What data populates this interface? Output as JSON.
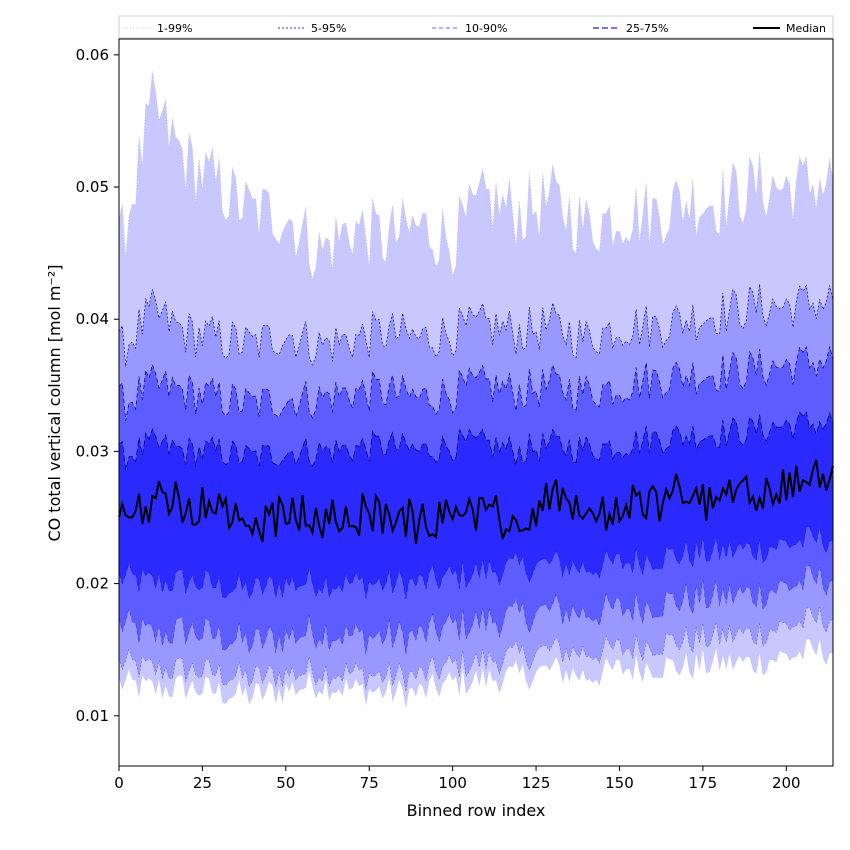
{
  "chart_data": {
    "type": "area",
    "xlabel": "Binned row index",
    "ylabel": "CO total vertical column [mol m⁻²]",
    "xlim": [
      0,
      214
    ],
    "ylim": [
      0.0062,
      0.0612
    ],
    "xticks": [
      0,
      25,
      50,
      75,
      100,
      125,
      150,
      175,
      200
    ],
    "yticks": [
      0.01,
      0.02,
      0.03,
      0.04,
      0.05,
      0.06
    ],
    "xtick_labels": [
      "0",
      "25",
      "50",
      "75",
      "100",
      "125",
      "150",
      "175",
      "200"
    ],
    "ytick_labels": [
      "0.01",
      "0.02",
      "0.03",
      "0.04",
      "0.05",
      "0.06"
    ],
    "legend_position": "top, spanning full width",
    "x_control": [
      0,
      10,
      20,
      30,
      40,
      50,
      60,
      70,
      80,
      90,
      100,
      110,
      120,
      130,
      140,
      150,
      160,
      170,
      180,
      190,
      200,
      214
    ],
    "bands": [
      {
        "name": "1-99%",
        "color": "#c8c8ff",
        "edge": "#bbbbee",
        "dash": "1,2",
        "lower": [
          0.0125,
          0.012,
          0.0122,
          0.0118,
          0.0115,
          0.012,
          0.0125,
          0.012,
          0.0118,
          0.0117,
          0.0125,
          0.0128,
          0.013,
          0.0135,
          0.013,
          0.0135,
          0.0138,
          0.0137,
          0.014,
          0.014,
          0.0145,
          0.015
        ],
        "upper": [
          0.045,
          0.056,
          0.052,
          0.05,
          0.048,
          0.048,
          0.045,
          0.047,
          0.046,
          0.047,
          0.046,
          0.049,
          0.048,
          0.049,
          0.047,
          0.048,
          0.048,
          0.049,
          0.049,
          0.05,
          0.05,
          0.0505
        ]
      },
      {
        "name": "5-95%",
        "color": "#9898ff",
        "edge": "#000080",
        "dash": "2,2",
        "lower": [
          0.014,
          0.0135,
          0.0135,
          0.0132,
          0.0128,
          0.0132,
          0.0135,
          0.0132,
          0.013,
          0.013,
          0.0138,
          0.0142,
          0.0145,
          0.015,
          0.0148,
          0.015,
          0.0155,
          0.0157,
          0.016,
          0.0162,
          0.0168,
          0.0175
        ],
        "upper": [
          0.0375,
          0.0405,
          0.039,
          0.0385,
          0.038,
          0.039,
          0.038,
          0.0385,
          0.039,
          0.0385,
          0.039,
          0.0395,
          0.039,
          0.0395,
          0.0385,
          0.0395,
          0.0395,
          0.04,
          0.0405,
          0.041,
          0.041,
          0.0415
        ]
      },
      {
        "name": "10-90%",
        "color": "#5c5cff",
        "edge": "#000080",
        "dash": "4,3",
        "lower": [
          0.017,
          0.016,
          0.0165,
          0.016,
          0.0155,
          0.016,
          0.0165,
          0.016,
          0.016,
          0.016,
          0.0168,
          0.0172,
          0.0175,
          0.018,
          0.0178,
          0.018,
          0.0185,
          0.0188,
          0.019,
          0.0192,
          0.0198,
          0.0205
        ],
        "upper": [
          0.0335,
          0.035,
          0.0345,
          0.034,
          0.0335,
          0.034,
          0.034,
          0.0345,
          0.0345,
          0.034,
          0.0345,
          0.035,
          0.0345,
          0.035,
          0.0345,
          0.035,
          0.0355,
          0.0358,
          0.036,
          0.0362,
          0.0365,
          0.037
        ]
      },
      {
        "name": "25-75%",
        "color": "#2a2aff",
        "edge": "#000060",
        "dash": "6,3",
        "lower": [
          0.0205,
          0.02,
          0.0202,
          0.0198,
          0.0195,
          0.02,
          0.0202,
          0.02,
          0.02,
          0.02,
          0.0205,
          0.021,
          0.0212,
          0.0215,
          0.0212,
          0.0215,
          0.022,
          0.0222,
          0.0224,
          0.0226,
          0.023,
          0.0235
        ],
        "upper": [
          0.0295,
          0.0305,
          0.03,
          0.03,
          0.0295,
          0.03,
          0.03,
          0.0302,
          0.0305,
          0.03,
          0.0305,
          0.0305,
          0.03,
          0.0305,
          0.0302,
          0.0305,
          0.031,
          0.0312,
          0.0314,
          0.0316,
          0.032,
          0.0322
        ]
      }
    ],
    "median": {
      "name": "Median",
      "color": "#000000",
      "values": [
        0.0245,
        0.0265,
        0.0258,
        0.0255,
        0.0245,
        0.0255,
        0.025,
        0.0252,
        0.0255,
        0.0245,
        0.0252,
        0.0255,
        0.024,
        0.0265,
        0.025,
        0.0255,
        0.0262,
        0.0268,
        0.0262,
        0.0268,
        0.0272,
        0.0285
      ]
    },
    "legend": [
      "1-99%",
      "5-95%",
      "10-90%",
      "25-75%",
      "Median"
    ]
  }
}
